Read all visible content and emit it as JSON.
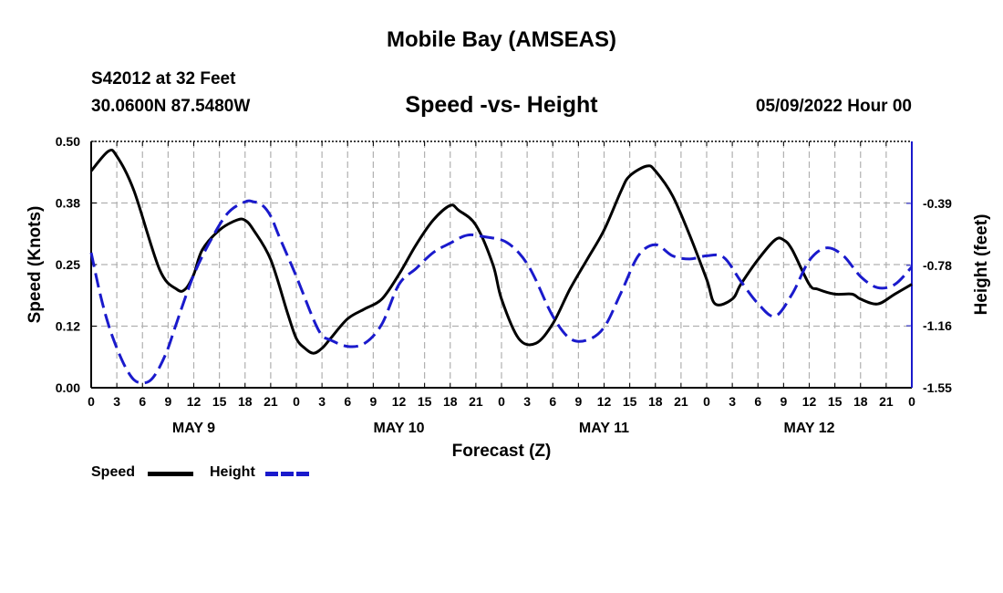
{
  "header": {
    "title": "Mobile Bay (AMSEAS)",
    "station": "S42012 at 32 Feet",
    "coordinates": "30.0600N  87.5480W",
    "subtitle": "Speed -vs- Height",
    "timestamp": "05/09/2022 Hour 00"
  },
  "footer": {
    "title": "Mobile Bay (AMSEAS)"
  },
  "legend": {
    "items": [
      {
        "label": "Speed",
        "color": "#000000",
        "style": "solid"
      },
      {
        "label": "Height",
        "color": "#1a1acc",
        "style": "dashed"
      }
    ]
  },
  "chart_data": {
    "type": "line",
    "xlabel": "Forecast (Z)",
    "x_ticks": [
      "0",
      "3",
      "6",
      "9",
      "12",
      "15",
      "18",
      "21",
      "0",
      "3",
      "6",
      "9",
      "12",
      "15",
      "18",
      "21",
      "0",
      "3",
      "6",
      "9",
      "12",
      "15",
      "18",
      "21",
      "0",
      "3",
      "6",
      "9",
      "12",
      "15",
      "18",
      "21",
      "0"
    ],
    "day_labels": [
      "MAY 9",
      "MAY 10",
      "MAY 11",
      "MAY 12"
    ],
    "xlim_hours": [
      0,
      96
    ],
    "grid": true,
    "y_left": {
      "label": "Speed (Knots)",
      "lim": [
        0,
        0.5
      ],
      "ticks": [
        "0.00",
        "0.12",
        "0.25",
        "0.38",
        "0.50"
      ]
    },
    "y_right": {
      "label": "Height (feet)",
      "lim": [
        -1.55,
        0
      ],
      "ticks": [
        "-0.39",
        "-0.78",
        "-1.16",
        "-1.55"
      ]
    },
    "series": [
      {
        "name": "Speed",
        "axis": "left",
        "color": "#000000",
        "x": [
          0,
          2,
          3,
          5,
          8,
          10,
          11,
          12,
          13,
          15,
          17,
          18,
          19,
          21,
          23,
          24,
          25,
          26,
          27,
          28,
          30,
          32,
          34,
          36,
          38,
          40,
          42,
          43,
          45,
          47,
          48,
          50,
          52,
          54,
          56,
          58,
          60,
          62,
          63,
          65,
          66,
          68,
          70,
          72,
          73,
          75,
          76,
          78,
          80,
          81,
          82,
          84,
          85,
          87,
          89,
          90,
          92,
          94,
          96
        ],
        "y": [
          0.44,
          0.48,
          0.47,
          0.4,
          0.24,
          0.2,
          0.2,
          0.23,
          0.28,
          0.32,
          0.34,
          0.34,
          0.32,
          0.26,
          0.15,
          0.1,
          0.08,
          0.07,
          0.08,
          0.1,
          0.14,
          0.16,
          0.18,
          0.23,
          0.29,
          0.34,
          0.37,
          0.36,
          0.33,
          0.25,
          0.18,
          0.1,
          0.09,
          0.13,
          0.2,
          0.26,
          0.32,
          0.4,
          0.43,
          0.45,
          0.44,
          0.39,
          0.31,
          0.22,
          0.17,
          0.18,
          0.21,
          0.26,
          0.3,
          0.3,
          0.28,
          0.21,
          0.2,
          0.19,
          0.19,
          0.18,
          0.17,
          0.19,
          0.21
        ]
      },
      {
        "name": "Height",
        "axis": "right",
        "color": "#1a1acc",
        "x": [
          0,
          1,
          2,
          3,
          4,
          5,
          6,
          7,
          8,
          9,
          10,
          12,
          14,
          16,
          18,
          19,
          20,
          21,
          22,
          24,
          26,
          27,
          28,
          30,
          32,
          34,
          36,
          38,
          40,
          42,
          44,
          46,
          48,
          49,
          50,
          51,
          52,
          54,
          56,
          58,
          60,
          62,
          64,
          66,
          68,
          70,
          72,
          74,
          76,
          78,
          80,
          82,
          84,
          86,
          88,
          90,
          92,
          94,
          96
        ],
        "y": [
          -0.7,
          -0.95,
          -1.15,
          -1.3,
          -1.42,
          -1.5,
          -1.52,
          -1.5,
          -1.42,
          -1.3,
          -1.14,
          -0.84,
          -0.62,
          -0.45,
          -0.38,
          -0.38,
          -0.4,
          -0.47,
          -0.6,
          -0.85,
          -1.12,
          -1.22,
          -1.25,
          -1.29,
          -1.27,
          -1.15,
          -0.9,
          -0.8,
          -0.7,
          -0.64,
          -0.59,
          -0.6,
          -0.62,
          -0.65,
          -0.7,
          -0.77,
          -0.87,
          -1.1,
          -1.24,
          -1.25,
          -1.17,
          -0.95,
          -0.72,
          -0.65,
          -0.72,
          -0.74,
          -0.72,
          -0.73,
          -0.88,
          -1.02,
          -1.1,
          -0.96,
          -0.75,
          -0.67,
          -0.72,
          -0.85,
          -0.92,
          -0.9,
          -0.79
        ]
      }
    ]
  }
}
